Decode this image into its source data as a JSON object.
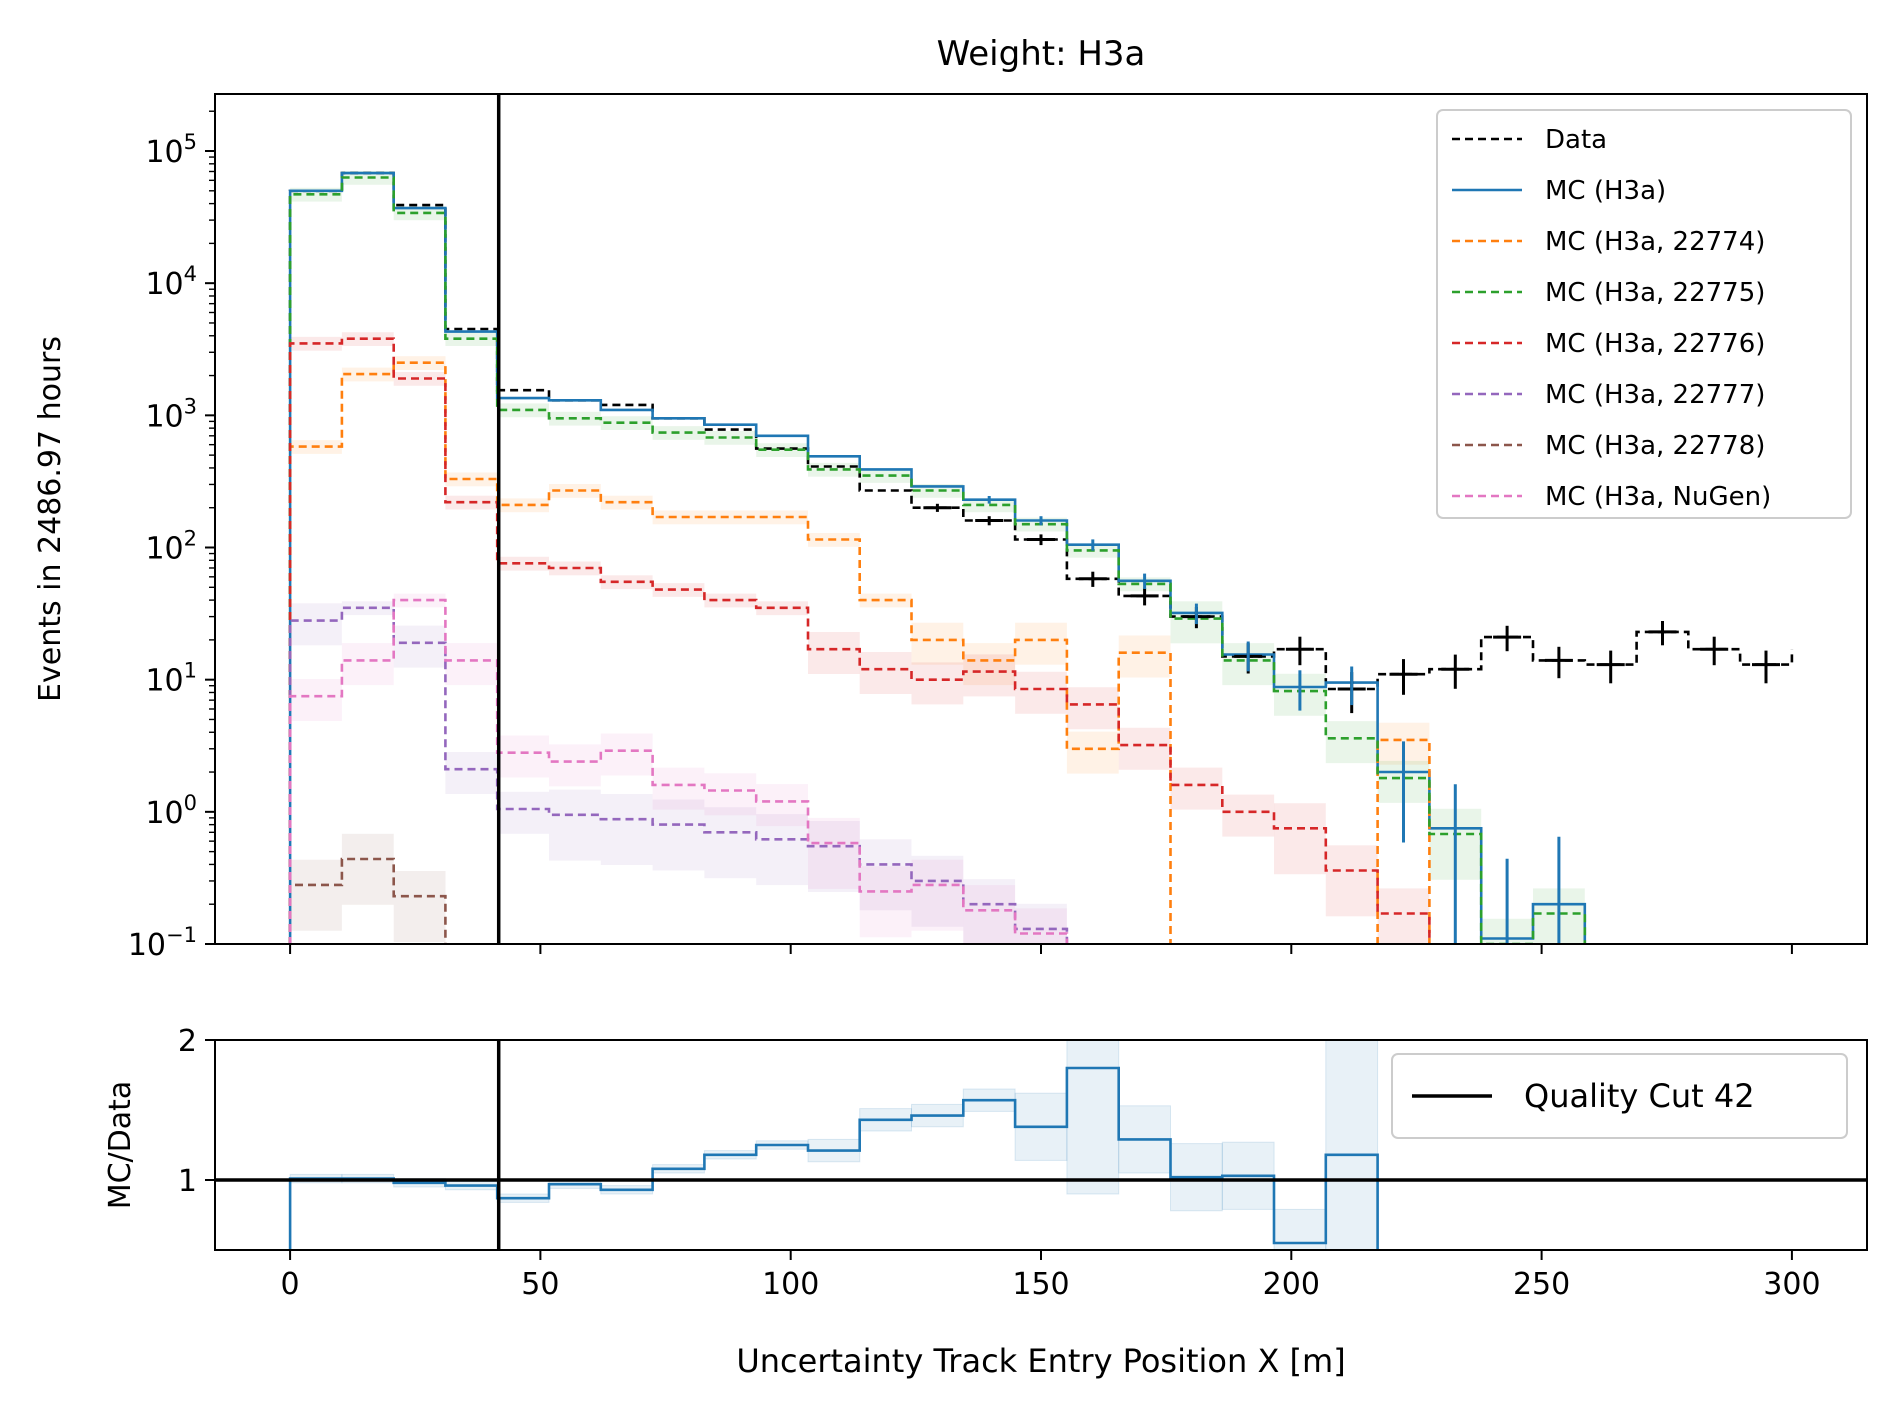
{
  "chart_data": [
    {
      "type": "line",
      "title": "Weight: H3a",
      "xlabel": "",
      "ylabel": "Events in 2486.97 hours",
      "yscale": "log",
      "xlim": [
        -15,
        315
      ],
      "ylim": [
        0.1,
        270000
      ],
      "grid": false,
      "legend_position": "top-right",
      "x_ticks": [
        0,
        50,
        100,
        150,
        200,
        250,
        300
      ],
      "y_ticks": [
        {
          "value": 0.1,
          "base": "10",
          "exp": "−1"
        },
        {
          "value": 1,
          "base": "10",
          "exp": "0"
        },
        {
          "value": 10,
          "base": "10",
          "exp": "1"
        },
        {
          "value": 100,
          "base": "10",
          "exp": "2"
        },
        {
          "value": 1000,
          "base": "10",
          "exp": "3"
        },
        {
          "value": 10000,
          "base": "10",
          "exp": "4"
        },
        {
          "value": 100000,
          "base": "10",
          "exp": "5"
        }
      ],
      "bin_edges": [
        0,
        10.34,
        20.69,
        31.03,
        41.38,
        51.72,
        62.07,
        72.41,
        82.76,
        93.1,
        103.45,
        113.79,
        124.14,
        134.48,
        144.83,
        155.17,
        165.52,
        175.86,
        186.21,
        196.55,
        206.9,
        217.24,
        227.59,
        237.93,
        248.28,
        258.62,
        268.97,
        279.31,
        289.66,
        300
      ],
      "series": [
        {
          "name": "Data",
          "color": "#000000",
          "style": "dashed",
          "errors": true,
          "values": [
            50000,
            68000,
            39000,
            4500,
            1550,
            1300,
            1200,
            950,
            780,
            560,
            410,
            270,
            200,
            160,
            115,
            58,
            43,
            30,
            15,
            17,
            8.5,
            11,
            12,
            21,
            14,
            13,
            23,
            17,
            13,
            17
          ]
        },
        {
          "name": "MC (H3a)",
          "color": "#1f77b4",
          "style": "solid",
          "errors": true,
          "values": [
            50000,
            68000,
            37000,
            4300,
            1350,
            1300,
            1100,
            950,
            850,
            700,
            490,
            390,
            290,
            230,
            160,
            105,
            56,
            32,
            15.5,
            8.8,
            9.5,
            2,
            0.75,
            0.11,
            0.2,
            null,
            null,
            null,
            null,
            null
          ]
        },
        {
          "name": "MC (H3a, 22774)",
          "color": "#ff7f0e",
          "style": "dashed",
          "band": true,
          "values": [
            580,
            2050,
            2500,
            330,
            210,
            270,
            220,
            170,
            170,
            170,
            115,
            40,
            20,
            14,
            20,
            3,
            16,
            null,
            null,
            null,
            null,
            3.5,
            null,
            null,
            null,
            null,
            null,
            null,
            null,
            null
          ]
        },
        {
          "name": "MC (H3a, 22775)",
          "color": "#2ca02c",
          "style": "dashed",
          "band": true,
          "values": [
            47000,
            63000,
            34000,
            3800,
            1100,
            950,
            880,
            740,
            680,
            550,
            390,
            350,
            270,
            210,
            150,
            95,
            53,
            29,
            14,
            8.2,
            3.6,
            1.8,
            0.68,
            0.1,
            0.17,
            null,
            null,
            null,
            null,
            null
          ]
        },
        {
          "name": "MC (H3a, 22776)",
          "color": "#d62728",
          "style": "dashed",
          "band": true,
          "values": [
            3500,
            3800,
            1900,
            220,
            76,
            70,
            55,
            48,
            40,
            35,
            17,
            12,
            10,
            11.5,
            8.5,
            6.5,
            3.2,
            1.6,
            1,
            0.75,
            0.36,
            0.17,
            null,
            null,
            null,
            null,
            null,
            null,
            null,
            null
          ]
        },
        {
          "name": "MC (H3a, 22777)",
          "color": "#9467bd",
          "style": "dashed",
          "band": true,
          "values": [
            28,
            35,
            19,
            2.1,
            1.05,
            0.95,
            0.88,
            0.8,
            0.7,
            0.62,
            0.55,
            0.4,
            0.3,
            0.2,
            0.13,
            null,
            null,
            null,
            null,
            null,
            null,
            null,
            null,
            null,
            null,
            null,
            null,
            null,
            null,
            null
          ]
        },
        {
          "name": "MC (H3a, 22778)",
          "color": "#8c564b",
          "style": "dashed",
          "band": true,
          "values": [
            0.28,
            0.44,
            0.23,
            null,
            null,
            null,
            null,
            null,
            null,
            null,
            null,
            null,
            null,
            null,
            null,
            null,
            null,
            null,
            null,
            null,
            null,
            null,
            null,
            null,
            null,
            null,
            null,
            null,
            null,
            null
          ]
        },
        {
          "name": "MC (H3a, NuGen)",
          "color": "#e377c2",
          "style": "dashed",
          "band": true,
          "values": [
            7.5,
            14,
            40,
            14,
            2.8,
            2.4,
            2.9,
            1.6,
            1.45,
            1.2,
            0.58,
            0.25,
            0.28,
            0.18,
            0.12,
            null,
            null,
            null,
            null,
            null,
            null,
            null,
            null,
            null,
            null,
            null,
            null,
            null,
            null,
            null
          ]
        }
      ]
    },
    {
      "type": "line",
      "title": "",
      "xlabel": "Uncertainty Track Entry Position X [m]",
      "ylabel": "MC/Data",
      "xlim": [
        -15,
        315
      ],
      "ylim": [
        0.5,
        2
      ],
      "grid": false,
      "legend_position": "top-right",
      "x_ticks": [
        0,
        50,
        100,
        150,
        200,
        250,
        300
      ],
      "y_ticks": [
        1,
        2
      ],
      "reference_line": 1,
      "series": [
        {
          "name": "",
          "color": "#1f77b4",
          "style": "solid",
          "band": true,
          "values": [
            1.01,
            1.01,
            0.98,
            0.96,
            0.87,
            0.97,
            0.93,
            1.08,
            1.18,
            1.25,
            1.21,
            1.43,
            1.46,
            1.57,
            1.38,
            1.8,
            1.29,
            1.02,
            1.03,
            0.55,
            1.18,
            null,
            null,
            null,
            null,
            null,
            null,
            null,
            null,
            null
          ]
        }
      ]
    }
  ],
  "quality_cut": {
    "x": 42,
    "label": "Quality Cut 42",
    "color": "#000000"
  }
}
